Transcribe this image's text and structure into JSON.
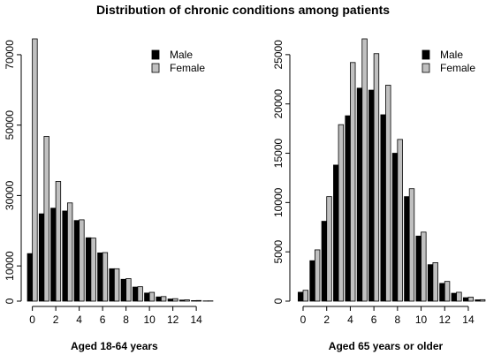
{
  "page": {
    "title": "Distribution of chronic conditions among patients"
  },
  "chart_data": [
    {
      "type": "bar",
      "categories": [
        0,
        1,
        2,
        3,
        4,
        5,
        6,
        7,
        8,
        9,
        10,
        11,
        12,
        13,
        14,
        15
      ],
      "x_ticks": [
        0,
        2,
        4,
        6,
        8,
        10,
        12,
        14
      ],
      "y_ticks": [
        0,
        10000,
        30000,
        50000,
        70000
      ],
      "ylim": [
        0,
        74500
      ],
      "series": [
        {
          "name": "Male",
          "color": "#000000",
          "values": [
            13500,
            24800,
            26400,
            25600,
            22900,
            18000,
            13700,
            9200,
            6200,
            4000,
            2300,
            1200,
            600,
            300,
            150,
            60
          ]
        },
        {
          "name": "Female",
          "color": "#c0c0c0",
          "values": [
            74500,
            46800,
            34000,
            27900,
            23100,
            17900,
            13800,
            9200,
            6400,
            4100,
            2500,
            1300,
            700,
            350,
            180,
            70
          ]
        }
      ],
      "xlabel": "Aged 18-64 years",
      "ylabel": "",
      "legend": "top-right",
      "grid": false
    },
    {
      "type": "bar",
      "categories": [
        0,
        1,
        2,
        3,
        4,
        5,
        6,
        7,
        8,
        9,
        10,
        11,
        12,
        13,
        14,
        15
      ],
      "x_ticks": [
        0,
        2,
        4,
        6,
        8,
        10,
        12,
        14
      ],
      "y_ticks": [
        0,
        5000,
        10000,
        15000,
        20000,
        25000
      ],
      "ylim": [
        0,
        26600
      ],
      "series": [
        {
          "name": "Male",
          "color": "#000000",
          "values": [
            900,
            4100,
            8100,
            13800,
            18800,
            21600,
            21400,
            18900,
            15000,
            10600,
            6600,
            3700,
            1800,
            800,
            350,
            130
          ]
        },
        {
          "name": "Female",
          "color": "#c0c0c0",
          "values": [
            1100,
            5200,
            10600,
            17900,
            24200,
            26600,
            25100,
            21900,
            16400,
            11400,
            7000,
            3900,
            2000,
            900,
            400,
            150
          ]
        }
      ],
      "xlabel": "Aged 65 years or older",
      "ylabel": "",
      "legend": "top-right",
      "grid": false
    }
  ]
}
